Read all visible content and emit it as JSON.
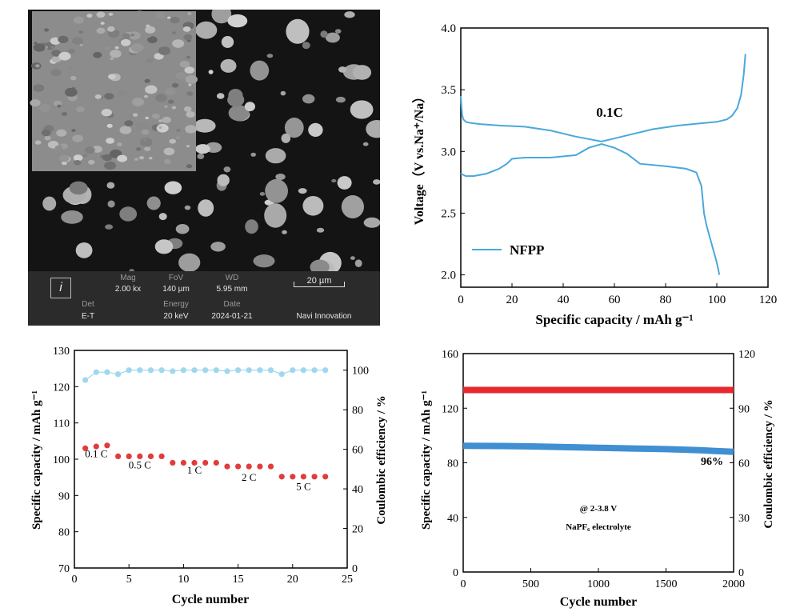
{
  "sem_panel": {
    "labels": {
      "mag": "Mag",
      "fov": "FoV",
      "wd": "WD",
      "det": "Det",
      "energy": "Energy",
      "date": "Date"
    },
    "values": {
      "mag": "2.00 kx",
      "fov": "140 µm",
      "wd": "5.95 mm",
      "det": "E-T",
      "energy": "20 keV",
      "date": "2024-01-21",
      "scale_bar": "20 µm",
      "vendor": "Navi Innovation"
    }
  },
  "chart_data": [
    {
      "type": "line",
      "xlabel": "Specific capacity / mAh g⁻¹",
      "ylabel": "Voltage（V vs.Na⁺/Na）",
      "xlim": [
        0,
        120
      ],
      "ylim": [
        1.9,
        4.0
      ],
      "x_ticks": [
        "0",
        "20",
        "40",
        "60",
        "80",
        "100",
        "120"
      ],
      "y_ticks": [
        "2.0",
        "2.5",
        "3.0",
        "3.5",
        "4.0"
      ],
      "annotation": "0.1C",
      "legend": {
        "label": "NFPP",
        "position": "lower-left"
      },
      "color": "#49a8dc",
      "series": [
        {
          "name": "NFPP",
          "curve": "charge",
          "x": [
            0,
            0.5,
            1,
            2,
            4,
            8,
            15,
            25,
            35,
            45,
            55,
            65,
            75,
            85,
            95,
            100,
            104,
            106,
            108,
            109.5,
            110.5,
            111.2
          ],
          "y": [
            3.45,
            3.3,
            3.26,
            3.24,
            3.23,
            3.22,
            3.21,
            3.2,
            3.17,
            3.12,
            3.08,
            3.13,
            3.18,
            3.21,
            3.23,
            3.24,
            3.26,
            3.29,
            3.35,
            3.46,
            3.62,
            3.79
          ]
        },
        {
          "name": "NFPP",
          "curve": "discharge",
          "x": [
            0,
            2,
            5,
            10,
            15,
            18,
            20,
            25,
            35,
            45,
            50,
            55,
            60,
            65,
            70,
            80,
            88,
            92,
            94,
            95,
            96,
            98,
            100,
            101
          ],
          "y": [
            2.82,
            2.8,
            2.8,
            2.82,
            2.86,
            2.9,
            2.94,
            2.95,
            2.95,
            2.97,
            3.03,
            3.06,
            3.03,
            2.98,
            2.9,
            2.88,
            2.86,
            2.83,
            2.72,
            2.5,
            2.4,
            2.25,
            2.1,
            2.0
          ]
        }
      ]
    },
    {
      "type": "scatter",
      "xlabel": "Cycle number",
      "ylabel": "Specific capacity / mAh g⁻¹",
      "y2label": "Coulombic efficiency / %",
      "xlim": [
        0,
        25
      ],
      "ylim": [
        70,
        130
      ],
      "y2lim": [
        0,
        110
      ],
      "x_ticks": [
        "0",
        "5",
        "10",
        "15",
        "20",
        "25"
      ],
      "y_ticks": [
        "70",
        "80",
        "90",
        "100",
        "110",
        "120",
        "130"
      ],
      "y2_ticks": [
        "0",
        "20",
        "40",
        "60",
        "80",
        "100"
      ],
      "rate_labels": [
        {
          "text": "0.1 C",
          "x": 2,
          "y": 100.5
        },
        {
          "text": "0.5 C",
          "x": 6,
          "y": 97.5
        },
        {
          "text": "1 C",
          "x": 11,
          "y": 96
        },
        {
          "text": "2 C",
          "x": 16,
          "y": 94
        },
        {
          "text": "5 C",
          "x": 21,
          "y": 91.5
        }
      ],
      "series": [
        {
          "name": "capacity",
          "axis": "left",
          "color": "#e03c3c",
          "x": [
            1,
            2,
            3,
            4,
            5,
            6,
            7,
            8,
            9,
            10,
            11,
            12,
            13,
            14,
            15,
            16,
            17,
            18,
            19,
            20,
            21,
            22,
            23
          ],
          "y": [
            103,
            103.5,
            103.8,
            100.8,
            100.8,
            100.8,
            100.8,
            100.8,
            99,
            99,
            99,
            99,
            99,
            98,
            98,
            98,
            98,
            98,
            95.2,
            95.2,
            95.2,
            95.2,
            95.2
          ]
        },
        {
          "name": "coulombic efficiency",
          "axis": "right",
          "color": "#9fd8ee",
          "x": [
            1,
            2,
            3,
            4,
            5,
            6,
            7,
            8,
            9,
            10,
            11,
            12,
            13,
            14,
            15,
            16,
            17,
            18,
            19,
            20,
            21,
            22,
            23
          ],
          "y": [
            95,
            99,
            99,
            98,
            100,
            100,
            100,
            100,
            99.5,
            100,
            100,
            100,
            100,
            99.5,
            100,
            100,
            100,
            100,
            98,
            100,
            100,
            100,
            100
          ]
        }
      ]
    },
    {
      "type": "line",
      "xlabel": "Cycle number",
      "ylabel": "Specific capacity / mAh g⁻¹",
      "y2label": "Coulombic efficiency / %",
      "xlim": [
        0,
        2000
      ],
      "ylim": [
        0,
        160
      ],
      "y2lim": [
        0,
        120
      ],
      "x_ticks": [
        "0",
        "500",
        "1000",
        "1500",
        "2000"
      ],
      "y_ticks": [
        "0",
        "40",
        "80",
        "120",
        "160"
      ],
      "y2_ticks": [
        "0",
        "30",
        "60",
        "90",
        "120"
      ],
      "annotations": {
        "retention": "96%",
        "condition_1": "@ 2-3.8 V",
        "condition_2": "NaPF₆ electrolyte"
      },
      "series": [
        {
          "name": "coulombic efficiency",
          "axis": "right",
          "color": "#e8282c",
          "x": [
            0,
            2000
          ],
          "y": [
            100,
            100
          ]
        },
        {
          "name": "capacity",
          "axis": "left",
          "color": "#3f8fd2",
          "x": [
            0,
            250,
            500,
            750,
            1000,
            1250,
            1500,
            1750,
            2000
          ],
          "y": [
            92.5,
            92.3,
            92,
            91.5,
            91,
            90.5,
            90,
            89.2,
            88
          ]
        }
      ]
    }
  ]
}
